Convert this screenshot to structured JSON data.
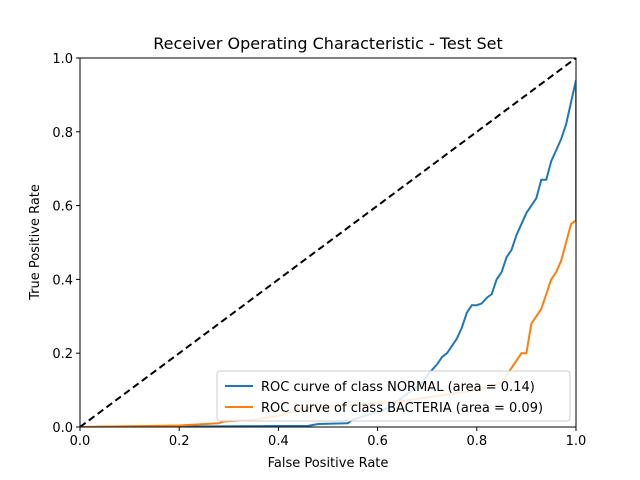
{
  "chart_data": {
    "type": "line",
    "title": "Receiver Operating Characteristic - Test Set",
    "xlabel": "False Positive Rate",
    "ylabel": "True Positive Rate",
    "xlim": [
      0,
      1
    ],
    "ylim": [
      0,
      1
    ],
    "xticks": [
      0,
      0.2,
      0.4,
      0.6,
      0.8,
      1
    ],
    "yticks": [
      0,
      0.2,
      0.4,
      0.6,
      0.8,
      1
    ],
    "xtick_labels": [
      "0.0",
      "0.2",
      "0.4",
      "0.6",
      "0.8",
      "1.0"
    ],
    "ytick_labels": [
      "0.0",
      "0.2",
      "0.4",
      "0.6",
      "0.8",
      "1.0"
    ],
    "grid": false,
    "legend_position": "lower-right",
    "series": [
      {
        "name": "ROC curve of class NORMAL (area = 0.14)",
        "color": "#1f77b4",
        "style": "solid",
        "x": [
          0,
          0.46,
          0.48,
          0.54,
          0.55,
          0.62,
          0.64,
          0.69,
          0.7,
          0.71,
          0.72,
          0.73,
          0.74,
          0.75,
          0.76,
          0.77,
          0.78,
          0.79,
          0.8,
          0.81,
          0.82,
          0.83,
          0.84,
          0.85,
          0.86,
          0.87,
          0.88,
          0.89,
          0.9,
          0.91,
          0.92,
          0.93,
          0.94,
          0.95,
          0.96,
          0.97,
          0.98,
          0.99,
          1.0
        ],
        "y": [
          0,
          0.003,
          0.008,
          0.01,
          0.02,
          0.05,
          0.07,
          0.12,
          0.14,
          0.155,
          0.17,
          0.19,
          0.2,
          0.22,
          0.24,
          0.27,
          0.31,
          0.33,
          0.33,
          0.335,
          0.35,
          0.36,
          0.4,
          0.42,
          0.46,
          0.48,
          0.52,
          0.55,
          0.58,
          0.6,
          0.62,
          0.67,
          0.67,
          0.72,
          0.75,
          0.78,
          0.82,
          0.88,
          0.94
        ]
      },
      {
        "name": "ROC curve of class BACTERIA (area = 0.09)",
        "color": "#ff7f0e",
        "style": "solid",
        "x": [
          0,
          0.1,
          0.2,
          0.28,
          0.29,
          0.35,
          0.4,
          0.45,
          0.55,
          0.65,
          0.7,
          0.75,
          0.8,
          0.85,
          0.88,
          0.89,
          0.9,
          0.91,
          0.92,
          0.93,
          0.94,
          0.95,
          0.96,
          0.97,
          0.98,
          0.99,
          1.0,
          1.0,
          1.0
        ],
        "y": [
          0,
          0.002,
          0.004,
          0.01,
          0.015,
          0.02,
          0.03,
          0.05,
          0.06,
          0.07,
          0.08,
          0.09,
          0.1,
          0.12,
          0.18,
          0.2,
          0.2,
          0.28,
          0.3,
          0.32,
          0.36,
          0.4,
          0.42,
          0.45,
          0.5,
          0.55,
          0.56,
          0.7,
          0.94
        ]
      },
      {
        "name": "",
        "color": "#000000",
        "style": "dashed",
        "x": [
          0,
          1
        ],
        "y": [
          0,
          1
        ]
      }
    ]
  }
}
